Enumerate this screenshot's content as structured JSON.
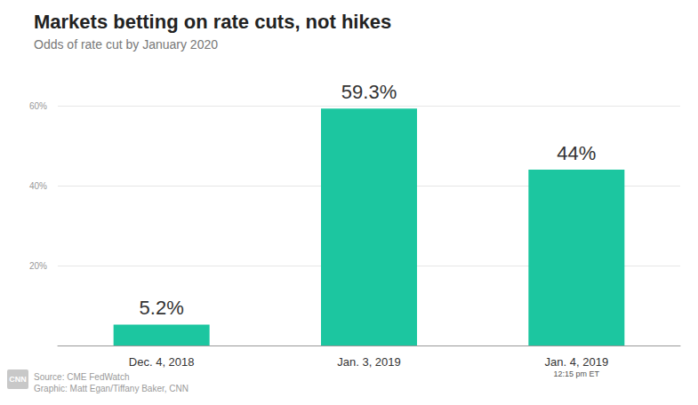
{
  "chart_data": {
    "type": "bar",
    "title": "Markets betting on rate cuts, not hikes",
    "subtitle": "Odds of rate cut by January 2020",
    "categories": [
      "Dec. 4, 2018",
      "Jan. 3, 2019",
      "Jan. 4, 2019\n12:15 pm ET"
    ],
    "values": [
      5.2,
      59.3,
      44
    ],
    "value_labels": [
      "5.2%",
      "59.3%",
      "44%"
    ],
    "color": "#1cc6a0",
    "ylim": [
      0,
      60
    ],
    "yticks": [
      {
        "value": 20,
        "label": "20%"
      },
      {
        "value": 40,
        "label": "40%"
      },
      {
        "value": 60,
        "label": "60%"
      }
    ],
    "grid": true,
    "data_labels": true,
    "source": "Source: CME FedWatch",
    "credit": "Graphic: Matt Egan/Tiffany Baker, CNN",
    "logo": "CNN"
  }
}
